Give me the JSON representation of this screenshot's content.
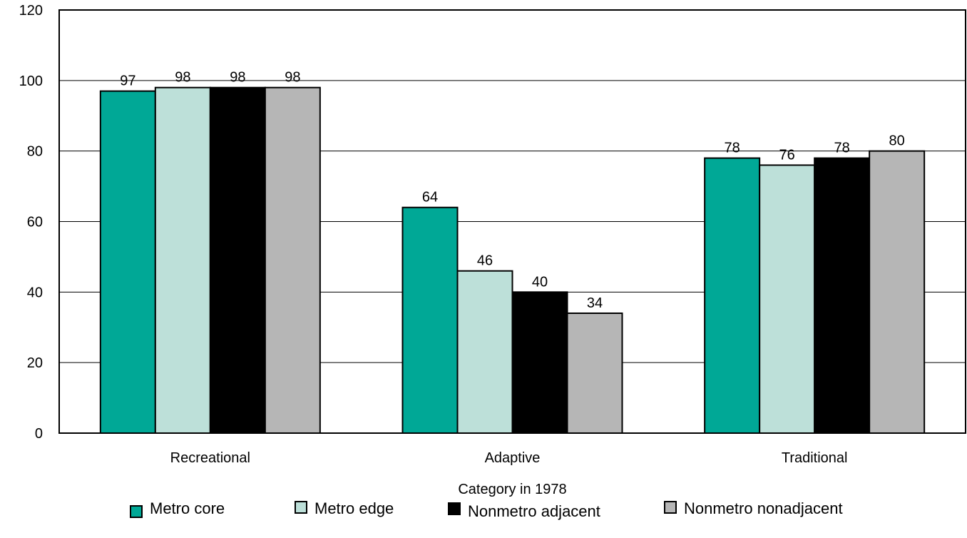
{
  "chart_data": {
    "type": "bar",
    "categories": [
      "Recreational",
      "Adaptive",
      "Traditional"
    ],
    "series": [
      {
        "name": "Metro core",
        "values": [
          97,
          64,
          78
        ],
        "color": "#00a896"
      },
      {
        "name": "Metro edge",
        "values": [
          98,
          46,
          76
        ],
        "color": "#bde0d9"
      },
      {
        "name": "Nonmetro adjacent",
        "values": [
          98,
          40,
          78
        ],
        "color": "#000000"
      },
      {
        "name": "Nonmetro nonadjacent",
        "values": [
          98,
          34,
          80
        ],
        "color": "#b6b6b6"
      }
    ],
    "title": "",
    "xlabel": "Category in 1978",
    "ylabel": "",
    "ylim": [
      0,
      120
    ],
    "yticks": [
      "0",
      "20",
      "40",
      "60",
      "80",
      "100",
      "120"
    ],
    "grid": true,
    "legend_position": "bottom"
  }
}
